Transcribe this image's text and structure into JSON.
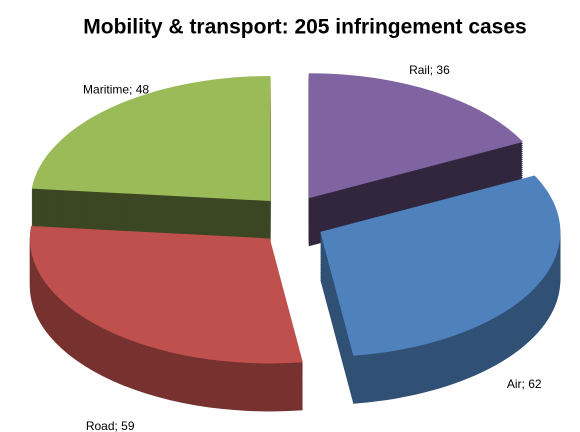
{
  "chart_data": {
    "type": "pie3d",
    "title": "Mobility & transport: 205 infringement cases",
    "values": [
      36,
      62,
      59,
      48
    ],
    "value_labels": [
      "Rail; 36",
      "Air; 62",
      "Road; 59",
      "Maritime; 48"
    ],
    "colors": [
      "#8064a2",
      "#4f81bd",
      "#c0504d",
      "#9bbb59"
    ]
  }
}
